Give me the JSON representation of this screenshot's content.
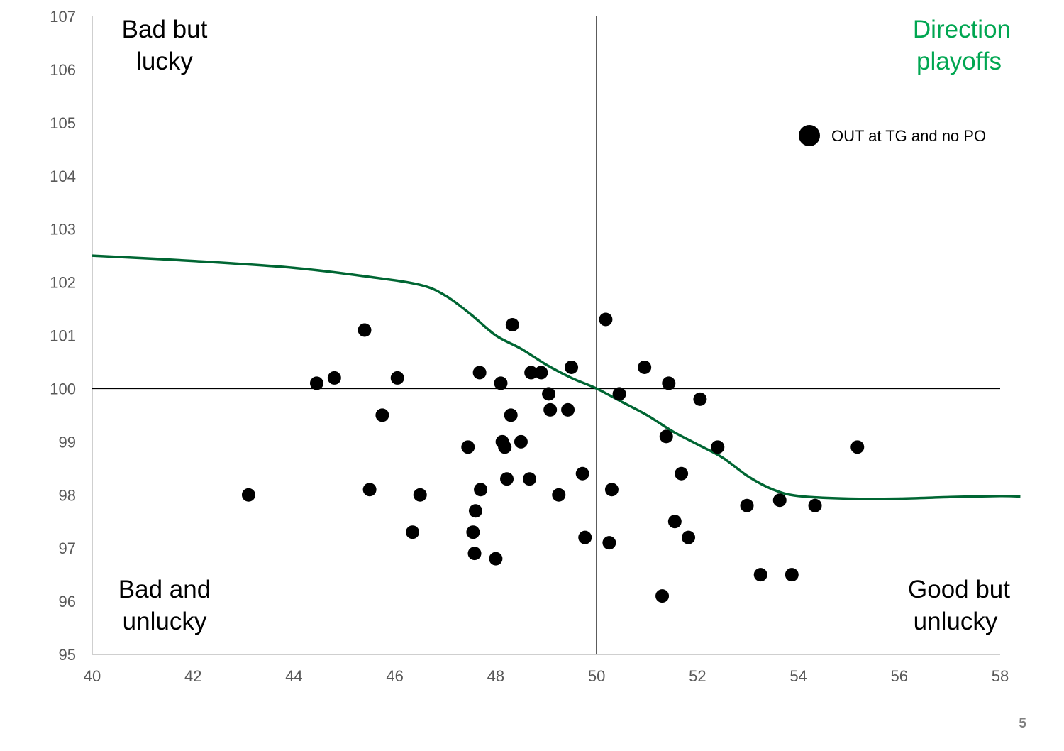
{
  "page_number": "5",
  "chart_data": {
    "type": "scatter",
    "xlim": [
      40,
      58
    ],
    "ylim": [
      95,
      107
    ],
    "x_ticks": [
      40,
      42,
      44,
      46,
      48,
      50,
      52,
      54,
      56,
      58
    ],
    "y_ticks": [
      95,
      96,
      97,
      98,
      99,
      100,
      101,
      102,
      103,
      104,
      105,
      106,
      107
    ],
    "reference_lines": {
      "x": 50,
      "y": 100
    },
    "quadrant_labels": {
      "top_left": [
        "Bad but",
        "lucky"
      ],
      "top_right": [
        "Direction",
        "playoffs"
      ],
      "bottom_left": [
        "Bad and",
        "unlucky"
      ],
      "bottom_right": [
        "Good but",
        "unlucky"
      ]
    },
    "colors": {
      "points": "#000000",
      "curve": "#006633",
      "top_right_label": "#00a651",
      "axis": "#bfbfbf"
    },
    "legend": {
      "placement": "top-right",
      "label": "OUT at TG and no PO"
    },
    "series": [
      {
        "name": "OUT at TG and no PO",
        "points": [
          [
            43.1,
            98.0
          ],
          [
            44.45,
            100.1
          ],
          [
            44.8,
            100.2
          ],
          [
            45.4,
            101.1
          ],
          [
            45.5,
            98.1
          ],
          [
            45.75,
            99.5
          ],
          [
            46.05,
            100.2
          ],
          [
            46.35,
            97.3
          ],
          [
            46.5,
            98.0
          ],
          [
            47.45,
            98.9
          ],
          [
            47.55,
            97.3
          ],
          [
            47.58,
            96.9
          ],
          [
            47.6,
            97.7
          ],
          [
            47.68,
            100.3
          ],
          [
            47.7,
            98.1
          ],
          [
            48.0,
            96.8
          ],
          [
            48.1,
            100.1
          ],
          [
            48.13,
            99.0
          ],
          [
            48.18,
            98.9
          ],
          [
            48.22,
            98.3
          ],
          [
            48.3,
            99.5
          ],
          [
            48.33,
            101.2
          ],
          [
            48.5,
            99.0
          ],
          [
            48.67,
            98.3
          ],
          [
            48.7,
            100.3
          ],
          [
            48.9,
            100.3
          ],
          [
            49.05,
            99.9
          ],
          [
            49.08,
            99.6
          ],
          [
            49.25,
            98.0
          ],
          [
            49.43,
            99.6
          ],
          [
            49.5,
            100.4
          ],
          [
            49.72,
            98.4
          ],
          [
            49.77,
            97.2
          ],
          [
            50.18,
            101.3
          ],
          [
            50.25,
            97.1
          ],
          [
            50.3,
            98.1
          ],
          [
            50.45,
            99.9
          ],
          [
            50.95,
            100.4
          ],
          [
            51.3,
            96.1
          ],
          [
            51.38,
            99.1
          ],
          [
            51.43,
            100.1
          ],
          [
            51.55,
            97.5
          ],
          [
            51.68,
            98.4
          ],
          [
            51.82,
            97.2
          ],
          [
            52.05,
            99.8
          ],
          [
            52.4,
            98.9
          ],
          [
            52.98,
            97.8
          ],
          [
            53.25,
            96.5
          ],
          [
            53.63,
            97.9
          ],
          [
            53.87,
            96.5
          ],
          [
            54.33,
            97.8
          ],
          [
            55.17,
            98.9
          ]
        ]
      },
      {
        "name": "",
        "kind": "curve",
        "points": [
          [
            40.0,
            102.5
          ],
          [
            42.0,
            102.4
          ],
          [
            44.0,
            102.27
          ],
          [
            45.5,
            102.1
          ],
          [
            46.5,
            101.95
          ],
          [
            47.0,
            101.75
          ],
          [
            47.5,
            101.4
          ],
          [
            48.0,
            101.0
          ],
          [
            48.5,
            100.75
          ],
          [
            49.0,
            100.45
          ],
          [
            49.5,
            100.2
          ],
          [
            50.0,
            100.0
          ],
          [
            50.5,
            99.75
          ],
          [
            51.0,
            99.5
          ],
          [
            51.5,
            99.2
          ],
          [
            52.0,
            98.95
          ],
          [
            52.5,
            98.7
          ],
          [
            53.0,
            98.35
          ],
          [
            53.5,
            98.1
          ],
          [
            54.0,
            97.98
          ],
          [
            55.0,
            97.93
          ],
          [
            56.0,
            97.93
          ],
          [
            57.0,
            97.96
          ],
          [
            58.0,
            97.98
          ],
          [
            58.4,
            97.97
          ]
        ]
      }
    ]
  }
}
